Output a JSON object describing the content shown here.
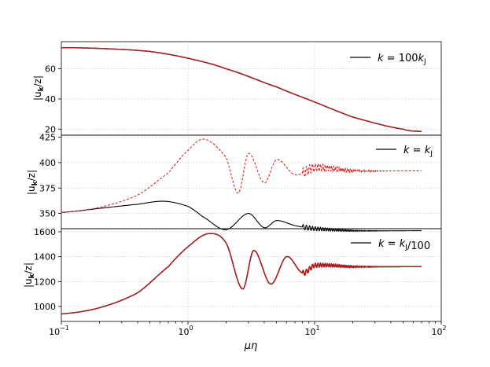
{
  "x_axis": {
    "label": "μη",
    "scale": "log",
    "range": [
      0.1,
      100
    ],
    "ticks": [
      {
        "value": 0.1,
        "base": "10",
        "exp": "−1"
      },
      {
        "value": 1,
        "base": "10",
        "exp": "0"
      },
      {
        "value": 10,
        "base": "10",
        "exp": "1"
      },
      {
        "value": 100,
        "base": "10",
        "exp": "2"
      }
    ]
  },
  "colors": {
    "solid_series": "#000000",
    "dashed_series": "#d62728",
    "overlap_series": "#b11a1a"
  },
  "chart_data": [
    {
      "type": "line",
      "ylabel": "|u_k/z|",
      "ylim": [
        16,
        78
      ],
      "yticks": [
        20,
        40,
        60
      ],
      "grid": true,
      "legend": {
        "location": "top-right",
        "label": "k = 100k_J"
      },
      "series": [
        {
          "name": "k = 100k_J",
          "style": "solid",
          "x": [
            0.1,
            0.2,
            0.5,
            1,
            2,
            5,
            10,
            20,
            50,
            70
          ],
          "y": [
            74,
            73.5,
            71.5,
            67,
            60,
            48,
            38,
            28,
            20,
            18.5
          ]
        },
        {
          "style": "dashed",
          "x": [
            0.1,
            0.2,
            0.5,
            1,
            2,
            5,
            10,
            20,
            50,
            70
          ],
          "y": [
            74,
            73.5,
            71.5,
            67,
            60,
            48,
            38,
            28,
            20,
            18.5
          ]
        }
      ]
    },
    {
      "type": "line",
      "ylabel": "|u_k/z|",
      "ylim": [
        335,
        427
      ],
      "yticks": [
        350,
        375,
        400,
        425
      ],
      "grid": true,
      "legend": {
        "location": "top-right",
        "label": "k = k_J"
      },
      "series": [
        {
          "name": "k = k_J",
          "style": "solid",
          "x": [
            0.1,
            0.2,
            0.4,
            0.65,
            1,
            1.3,
            2,
            3,
            4,
            5,
            7,
            10,
            20,
            70
          ],
          "y": [
            351,
            355,
            359,
            362,
            357,
            347,
            334,
            350,
            336,
            343,
            338,
            335,
            333,
            333
          ]
        },
        {
          "style": "dashed",
          "x": [
            0.1,
            0.2,
            0.4,
            0.7,
            1,
            1.35,
            2,
            2.5,
            3,
            4,
            5,
            7,
            10,
            20,
            70
          ],
          "y": [
            351,
            356,
            368,
            390,
            412,
            423,
            405,
            370,
            409,
            380,
            403,
            388,
            395,
            392,
            392
          ]
        }
      ]
    },
    {
      "type": "line",
      "ylabel": "|u_k/z|",
      "ylim": [
        880,
        1625
      ],
      "yticks": [
        1000,
        1200,
        1400,
        1600
      ],
      "grid": true,
      "legend": {
        "location": "top-right",
        "label": "k = k_J/100"
      },
      "series": [
        {
          "name": "k = k_J/100",
          "style": "solid",
          "x": [
            0.1,
            0.2,
            0.4,
            0.7,
            1,
            1.45,
            2,
            2.7,
            3.3,
            4.5,
            6,
            8,
            10,
            20,
            70
          ],
          "y": [
            940,
            990,
            1110,
            1320,
            1480,
            1585,
            1510,
            1140,
            1450,
            1180,
            1400,
            1270,
            1330,
            1320,
            1320
          ]
        },
        {
          "style": "dashed",
          "x": [
            0.1,
            0.2,
            0.4,
            0.7,
            1,
            1.45,
            2,
            2.7,
            3.3,
            4.5,
            6,
            8,
            10,
            20,
            70
          ],
          "y": [
            940,
            990,
            1110,
            1320,
            1480,
            1585,
            1510,
            1140,
            1450,
            1180,
            1400,
            1270,
            1330,
            1320,
            1320
          ]
        }
      ]
    }
  ]
}
